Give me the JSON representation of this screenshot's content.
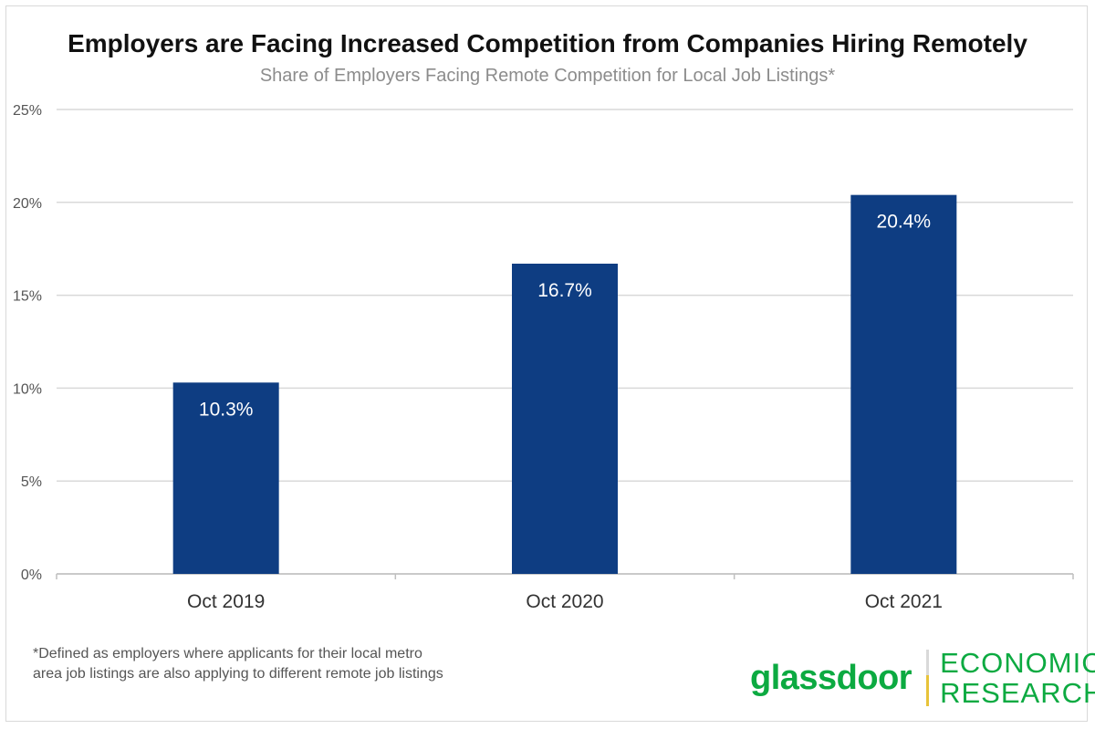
{
  "chart_data": {
    "type": "bar",
    "title": "Employers are Facing Increased Competition from Companies Hiring Remotely",
    "subtitle": "Share of Employers Facing Remote Competition for Local Job Listings*",
    "categories": [
      "Oct 2019",
      "Oct 2020",
      "Oct 2021"
    ],
    "values": [
      10.3,
      16.7,
      20.4
    ],
    "data_labels": [
      "10.3%",
      "16.7%",
      "20.4%"
    ],
    "ylim": [
      0,
      25
    ],
    "yticks": [
      0,
      5,
      10,
      15,
      20,
      25
    ],
    "ytick_labels": [
      "0%",
      "5%",
      "10%",
      "15%",
      "20%",
      "25%"
    ],
    "xlabel": "",
    "ylabel": "",
    "grid": true,
    "legend": "none",
    "bar_color": "#0e3d82",
    "grid_color": "#d9d9d9"
  },
  "footnote": "*Defined as employers where applicants for their local metro area job listings are also applying to different remote job listings",
  "brand": {
    "name": "glassdoor",
    "research_line1": "ECONOMIC",
    "research_line2": "RESEARCH",
    "color": "#0caa41",
    "accent_color": "#e8c33a"
  }
}
